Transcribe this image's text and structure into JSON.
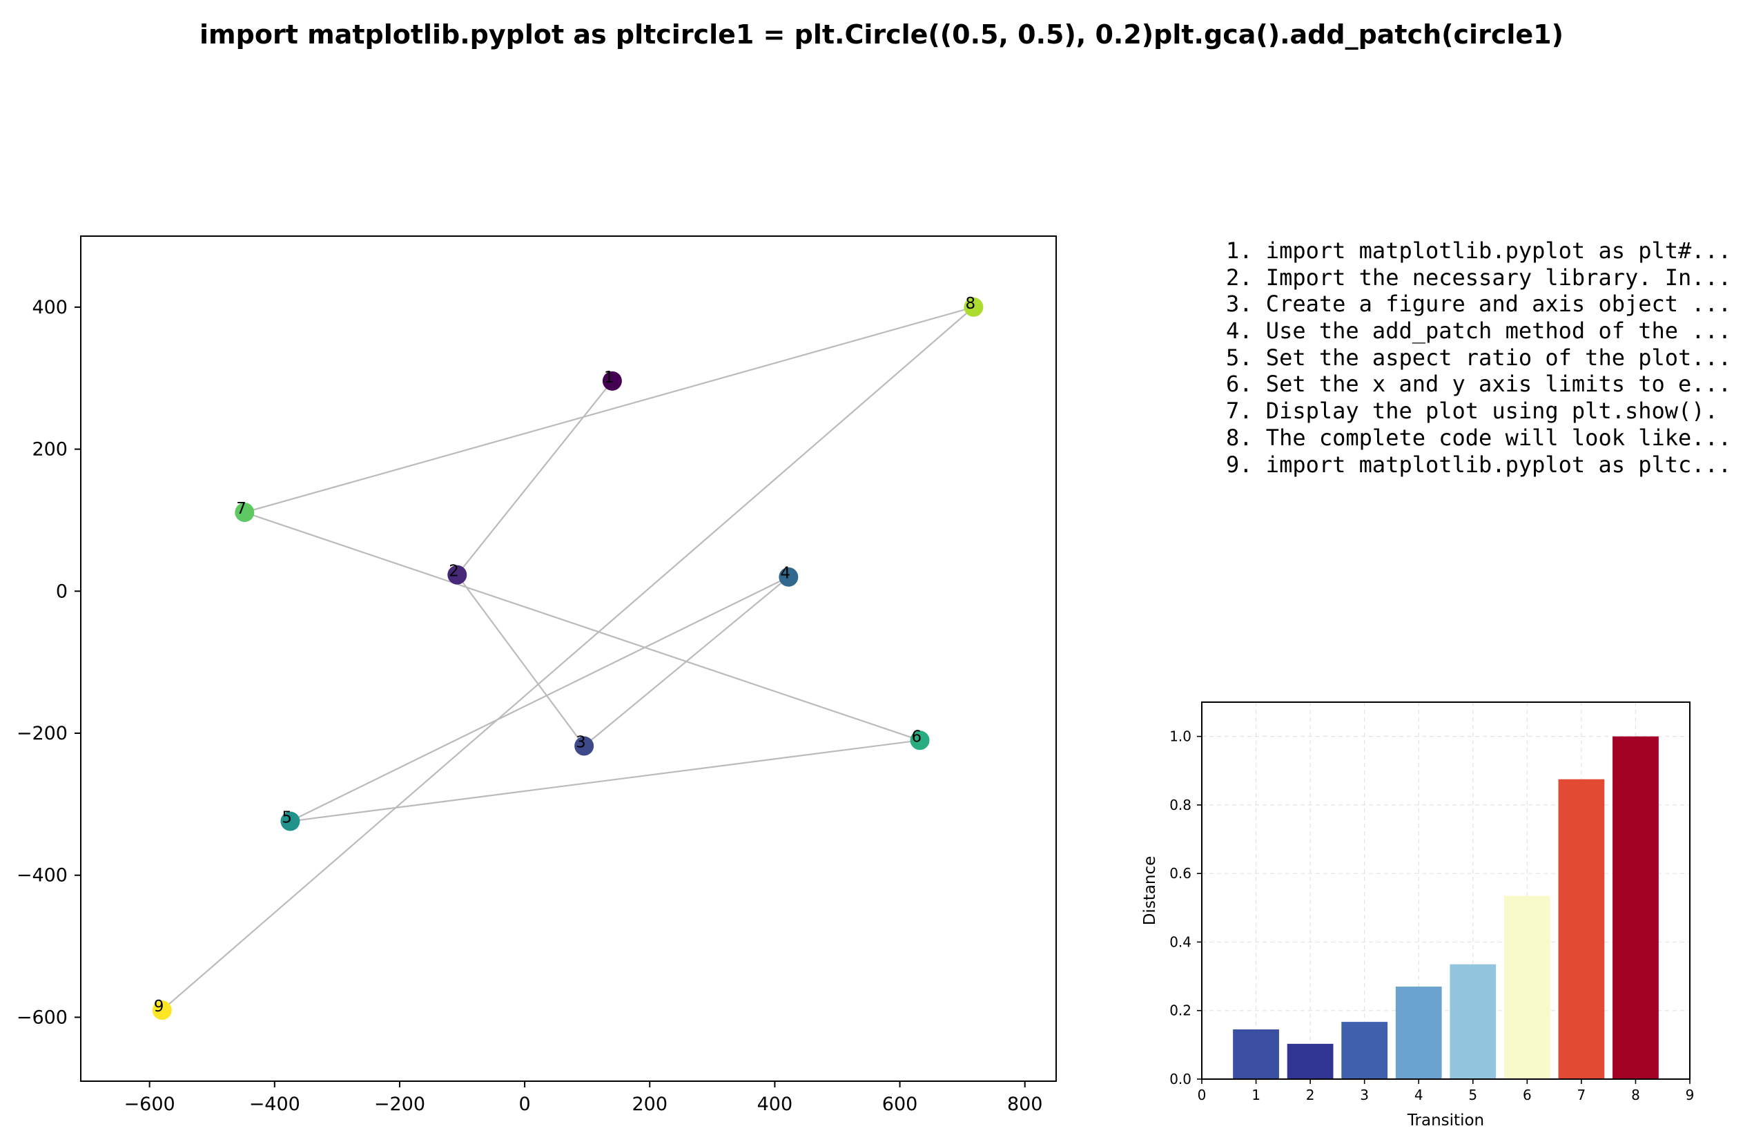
{
  "title": "import matplotlib.pyplot as pltcircle1 = plt.Circle((0.5, 0.5), 0.2)plt.gca().add_patch(circle1)",
  "steps": [
    "1. import matplotlib.pyplot as plt#...",
    "2. Import the necessary library. In...",
    "3. Create a figure and axis object ...",
    "4. Use the add_patch method of the ...",
    "5. Set the aspect ratio of the plot...",
    "6. Set the x and y axis limits to e...",
    "7. Display the plot using plt.show().",
    "8. The complete code will look like...",
    "9. import matplotlib.pyplot as pltc..."
  ],
  "chart_data": [
    {
      "type": "scatter",
      "title": "",
      "xlabel": "",
      "ylabel": "",
      "xlim": [
        -710,
        850
      ],
      "ylim": [
        -690,
        500
      ],
      "xticks": [
        -600,
        -400,
        -200,
        0,
        200,
        400,
        600,
        800
      ],
      "yticks": [
        -600,
        -400,
        -200,
        0,
        200,
        400
      ],
      "grid": false,
      "connected_in_order": true,
      "line_color": "#bbbbbb",
      "points": [
        {
          "label": "1",
          "x": 140,
          "y": 296,
          "color": "#440154"
        },
        {
          "label": "2",
          "x": -108,
          "y": 23,
          "color": "#482878"
        },
        {
          "label": "3",
          "x": 95,
          "y": -218,
          "color": "#3e4989"
        },
        {
          "label": "4",
          "x": 422,
          "y": 20,
          "color": "#31688e"
        },
        {
          "label": "5",
          "x": -375,
          "y": -324,
          "color": "#21918c"
        },
        {
          "label": "6",
          "x": 632,
          "y": -210,
          "color": "#27ad81"
        },
        {
          "label": "7",
          "x": -448,
          "y": 111,
          "color": "#5ec962"
        },
        {
          "label": "8",
          "x": 718,
          "y": 400,
          "color": "#addc30"
        },
        {
          "label": "9",
          "x": -580,
          "y": -590,
          "color": "#fde725"
        }
      ]
    },
    {
      "type": "bar",
      "title": "",
      "xlabel": "Transition",
      "ylabel": "Distance",
      "xlim": [
        0,
        9
      ],
      "ylim": [
        0,
        1.1
      ],
      "xticks": [
        0,
        1,
        2,
        3,
        4,
        5,
        6,
        7,
        8,
        9
      ],
      "yticks": [
        "0.0",
        "0.2",
        "0.4",
        "0.6",
        "0.8",
        "1.0"
      ],
      "grid": true,
      "categories": [
        1,
        2,
        3,
        4,
        5,
        6,
        7,
        8
      ],
      "values": [
        0.145,
        0.103,
        0.167,
        0.27,
        0.335,
        0.535,
        0.875,
        1.0
      ],
      "colors": [
        "#3a4fa2",
        "#313695",
        "#4060ad",
        "#6ca3cf",
        "#93c5df",
        "#f8fbc9",
        "#e34a33",
        "#a50026"
      ]
    }
  ]
}
